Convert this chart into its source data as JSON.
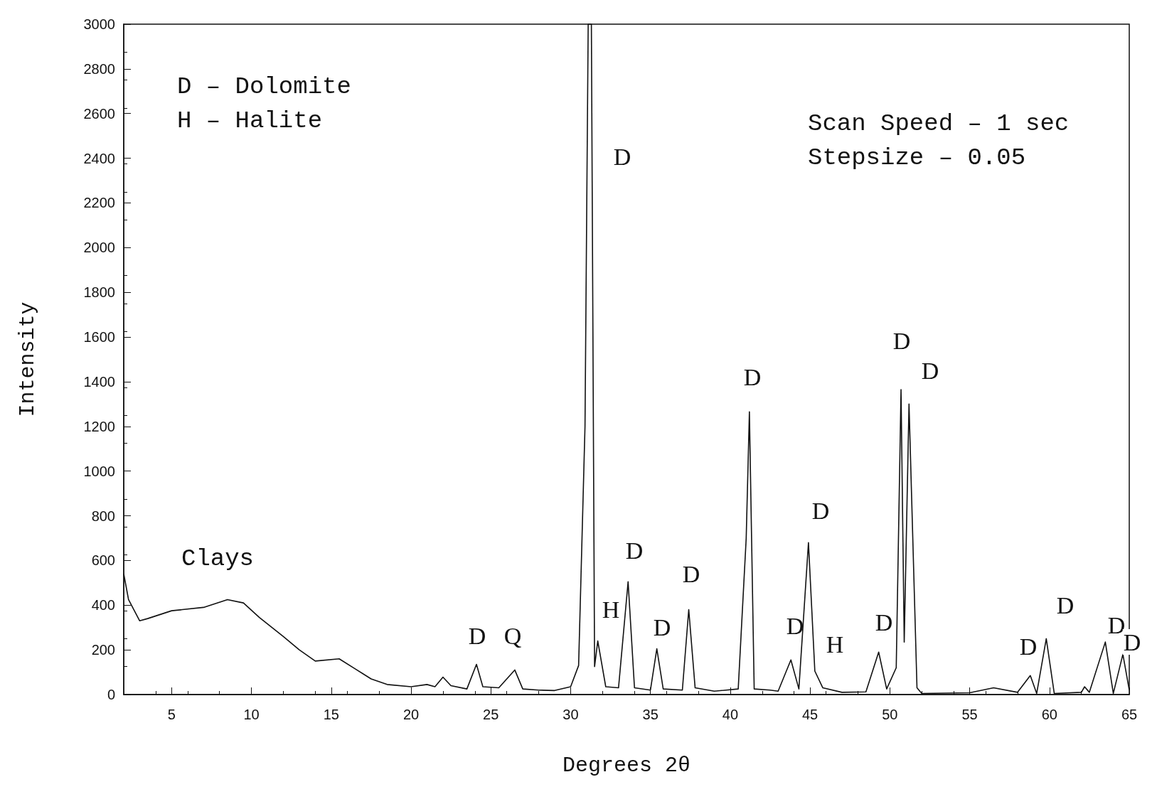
{
  "chart_data": {
    "type": "line",
    "xlabel": "Degrees 2θ",
    "ylabel": "Intensity",
    "xlim": [
      2,
      65
    ],
    "ylim": [
      0,
      3000
    ],
    "xticks": [
      5,
      10,
      15,
      20,
      25,
      30,
      35,
      40,
      45,
      50,
      55,
      60,
      65
    ],
    "yticks": [
      0,
      200,
      400,
      600,
      800,
      1000,
      1200,
      1400,
      1600,
      1800,
      2000,
      2200,
      2400,
      2600,
      2800,
      3000
    ],
    "grid": false,
    "marker": "none",
    "line_style": "solid",
    "series": [
      {
        "color": "#111111",
        "x": [
          2.0,
          2.3,
          3.0,
          3.5,
          5,
          7,
          8.5,
          9.5,
          10.5,
          12,
          13,
          14,
          15.5,
          16.5,
          17.5,
          18.5,
          20,
          21,
          21.5,
          22,
          22.5,
          23.5,
          24.1,
          24.5,
          25.5,
          26.5,
          27,
          28,
          29,
          30,
          30.5,
          30.9,
          31.1,
          31.3,
          31.5,
          31.7,
          32.2,
          33,
          33.6,
          34,
          35,
          35.4,
          35.8,
          37,
          37.4,
          37.8,
          39,
          40.5,
          41.0,
          41.2,
          41.5,
          42.5,
          43,
          43.8,
          44.3,
          44.9,
          45.3,
          45.8,
          47,
          48.5,
          49.3,
          49.8,
          50.4,
          50.7,
          50.9,
          51.2,
          51.7,
          52,
          55,
          56.5,
          58,
          58.8,
          59.2,
          59.8,
          60.3,
          62,
          62.2,
          62.5,
          63.5,
          64,
          64.6,
          65
        ],
        "values": [
          540,
          425,
          330,
          340,
          375,
          390,
          425,
          410,
          345,
          260,
          200,
          150,
          160,
          115,
          70,
          45,
          35,
          45,
          35,
          78,
          40,
          25,
          135,
          35,
          30,
          110,
          25,
          20,
          18,
          35,
          130,
          1200,
          3000,
          3000,
          125,
          240,
          35,
          30,
          505,
          30,
          20,
          205,
          25,
          20,
          380,
          30,
          15,
          25,
          700,
          1265,
          25,
          20,
          15,
          155,
          25,
          680,
          105,
          30,
          10,
          12,
          190,
          25,
          120,
          1365,
          235,
          1300,
          30,
          5,
          8,
          30,
          10,
          85,
          5,
          250,
          5,
          10,
          35,
          10,
          235,
          5,
          180,
          20
        ]
      }
    ],
    "annotations": [
      "D – Dolomite",
      "H – Halite",
      "Scan Speed – 1 sec",
      "Stepsize – 0.05",
      "Clays",
      "D",
      "Q",
      "D",
      "H",
      "D",
      "D",
      "D",
      "D",
      "D",
      "D",
      "H",
      "D",
      "D",
      "D",
      "D",
      "D",
      "D",
      "D"
    ]
  }
}
